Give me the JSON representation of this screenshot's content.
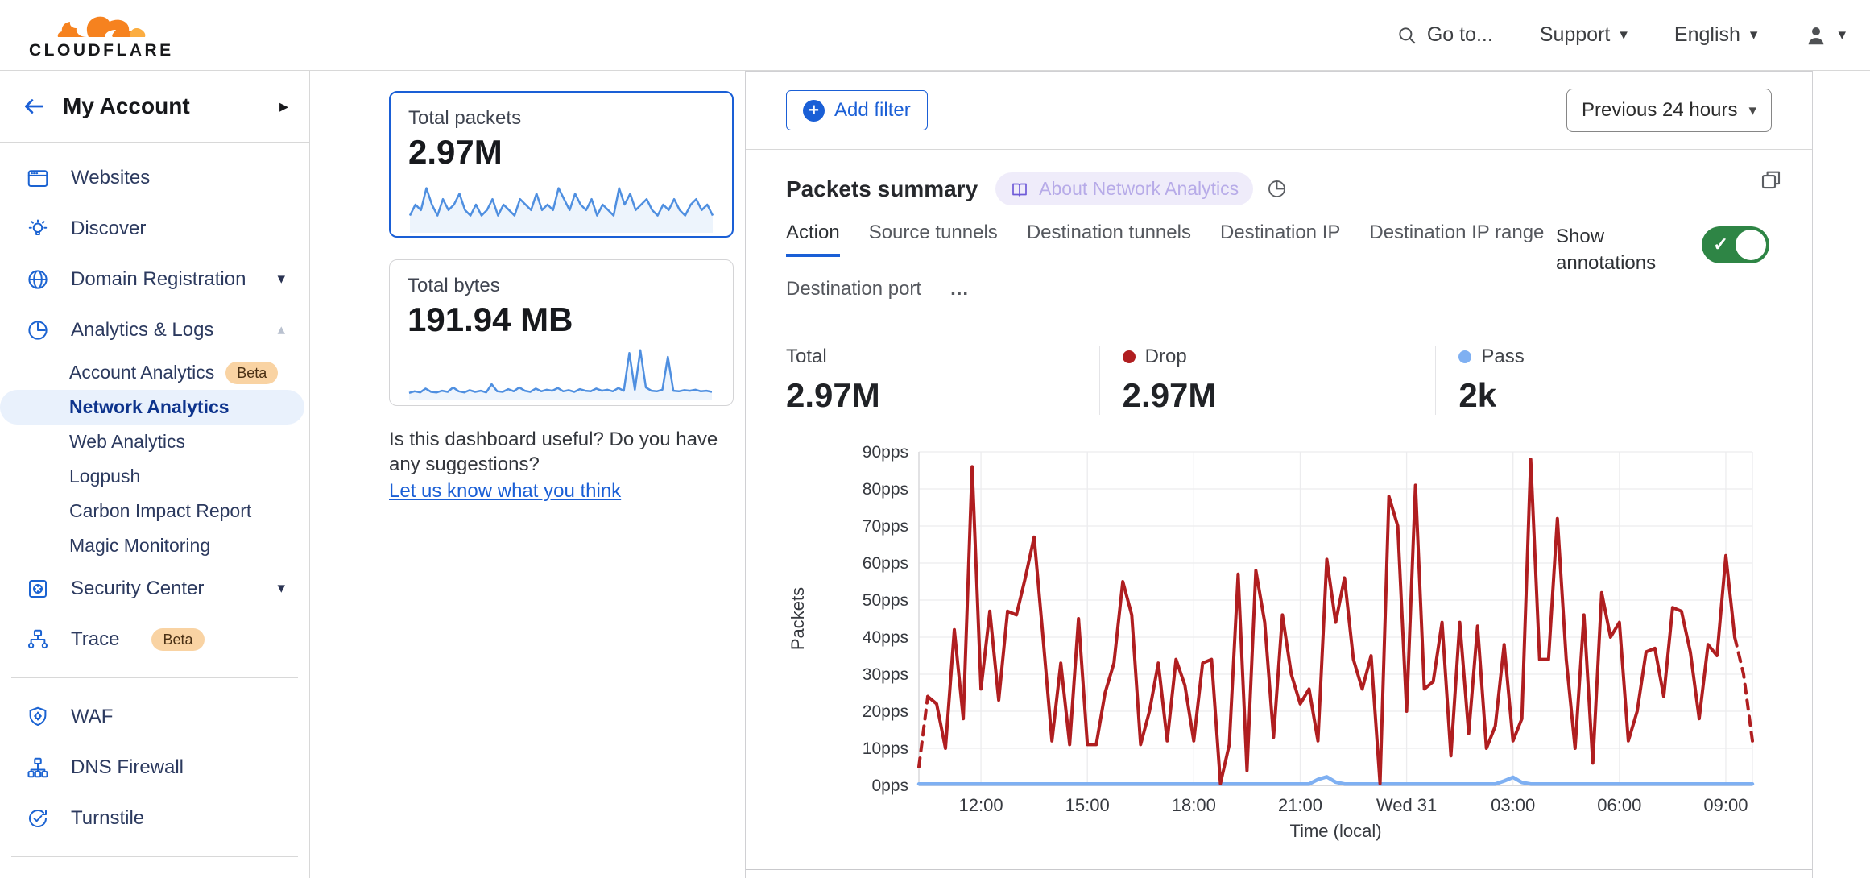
{
  "header": {
    "logo_word": "CLOUDFLARE",
    "goto": "Go to...",
    "support": "Support",
    "language": "English"
  },
  "sidebar": {
    "account_label": "My Account",
    "nav": [
      {
        "type": "item",
        "label": "Websites",
        "icon": "browser"
      },
      {
        "type": "item",
        "label": "Discover",
        "icon": "bulb"
      },
      {
        "type": "item",
        "label": "Domain Registration",
        "icon": "globe",
        "caret": "down"
      },
      {
        "type": "item",
        "label": "Analytics & Logs",
        "icon": "analytics",
        "caret": "up"
      },
      {
        "type": "sub",
        "label": "Account Analytics",
        "badge": "Beta"
      },
      {
        "type": "sub",
        "label": "Network Analytics",
        "selected": true
      },
      {
        "type": "sub",
        "label": "Web Analytics"
      },
      {
        "type": "sub",
        "label": "Logpush"
      },
      {
        "type": "sub",
        "label": "Carbon Impact Report"
      },
      {
        "type": "sub",
        "label": "Magic Monitoring"
      },
      {
        "type": "item",
        "label": "Security Center",
        "icon": "safe",
        "caret": "down"
      },
      {
        "type": "item",
        "label": "Trace",
        "icon": "trace",
        "badge": "Beta"
      },
      {
        "type": "divider"
      },
      {
        "type": "item",
        "label": "WAF",
        "icon": "shield"
      },
      {
        "type": "item",
        "label": "DNS Firewall",
        "icon": "hierarchy"
      },
      {
        "type": "item",
        "label": "Turnstile",
        "icon": "refresh-check"
      },
      {
        "type": "divider"
      },
      {
        "type": "item",
        "label": "",
        "icon": "starburst",
        "partial": true
      }
    ]
  },
  "overview": {
    "cards": [
      {
        "title": "Total packets",
        "value": "2.97M",
        "selected": true,
        "chart_index": 1
      },
      {
        "title": "Total bytes",
        "value": "191.94 MB",
        "selected": false,
        "chart_index": 2
      }
    ],
    "feedback": {
      "text": "Is this dashboard useful? Do you have any suggestions?",
      "link": "Let us know what you think"
    }
  },
  "main": {
    "add_filter": "Add filter",
    "time_range": "Previous 24 hours",
    "panel_title": "Packets summary",
    "about_badge": "About Network Analytics",
    "tabs": [
      "Action",
      "Source tunnels",
      "Destination tunnels",
      "Destination IP",
      "Destination IP range",
      "Destination port"
    ],
    "tabs_more": "...",
    "active_tab": "Action",
    "show_annotations": "Show annotations",
    "annotations_on": true,
    "totals": [
      {
        "label": "Total",
        "value": "2.97M",
        "dot": null
      },
      {
        "label": "Drop",
        "value": "2.97M",
        "dot": "#b01e20"
      },
      {
        "label": "Pass",
        "value": "2k",
        "dot": "#7fb0f2"
      }
    ],
    "colors": {
      "accent": "#1a5fd6",
      "drop": "#b01e20",
      "pass": "#7fb0f2",
      "toggle_green": "#2e8545"
    }
  },
  "chart_data": [
    {
      "type": "line",
      "title": "Packets summary",
      "xlabel": "Time (local)",
      "ylabel": "Packets",
      "ylim": [
        0,
        90
      ],
      "y_tick_step": 10,
      "y_unit": "pps",
      "x_ticks": [
        "12:00",
        "15:00",
        "18:00",
        "21:00",
        "Wed 31",
        "03:00",
        "06:00",
        "09:00"
      ],
      "x_tick_indices": [
        7,
        19,
        31,
        43,
        55,
        67,
        79,
        91
      ],
      "grid": true,
      "legend_position": "top",
      "series": [
        {
          "name": "Drop",
          "color": "#b01e20",
          "dashed_head_points": 2,
          "dashed_tail_points": 3,
          "values": [
            5,
            24,
            22,
            10,
            42,
            18,
            86,
            26,
            47,
            23,
            47,
            46,
            56,
            67,
            40,
            12,
            33,
            11,
            45,
            11,
            11,
            25,
            33,
            55,
            46,
            11,
            20,
            33,
            12,
            34,
            27,
            12,
            33,
            34,
            0.5,
            11,
            57,
            4,
            58,
            44,
            13,
            46,
            30,
            22,
            26,
            12,
            61,
            44,
            56,
            34,
            26,
            35,
            0.5,
            78,
            70,
            20,
            81,
            26,
            28,
            44,
            8,
            44,
            14,
            43,
            10,
            16,
            38,
            12,
            18,
            88,
            34,
            34,
            72,
            34,
            10,
            46,
            6,
            52,
            40,
            44,
            12,
            20,
            36,
            37,
            24,
            48,
            47,
            36,
            18,
            38,
            35,
            62,
            40,
            30,
            12
          ]
        },
        {
          "name": "Pass",
          "color": "#7fb0f2",
          "dashed_head_points": 0,
          "dashed_tail_points": 0,
          "values": [
            0.4,
            0.4,
            0.4,
            0.4,
            0.4,
            0.4,
            0.4,
            0.4,
            0.4,
            0.4,
            0.4,
            0.4,
            0.4,
            0.4,
            0.4,
            0.4,
            0.4,
            0.4,
            0.4,
            0.4,
            0.4,
            0.4,
            0.4,
            0.4,
            0.4,
            0.4,
            0.4,
            0.4,
            0.4,
            0.4,
            0.4,
            0.4,
            0.4,
            0.4,
            0.4,
            0.4,
            0.4,
            0.4,
            0.4,
            0.4,
            0.4,
            0.4,
            0.4,
            0.4,
            0.4,
            1.6,
            2.3,
            0.9,
            0.4,
            0.4,
            0.4,
            0.4,
            0.4,
            0.4,
            0.4,
            0.4,
            0.4,
            0.4,
            0.4,
            0.4,
            0.4,
            0.4,
            0.4,
            0.4,
            0.4,
            0.4,
            1.2,
            2.2,
            0.8,
            0.4,
            0.4,
            0.4,
            0.4,
            0.4,
            0.4,
            0.4,
            0.4,
            0.4,
            0.4,
            0.4,
            0.4,
            0.4,
            0.4,
            0.4,
            0.4,
            0.4,
            0.4,
            0.4,
            0.4,
            0.4,
            0.4,
            0.4,
            0.4,
            0.4,
            0.4
          ]
        }
      ]
    },
    {
      "type": "line",
      "title": "Total packets sparkline",
      "ylim": [
        0,
        10
      ],
      "color": "#4f8fe0",
      "values": [
        3,
        5,
        4,
        8,
        5,
        3,
        6,
        4,
        5,
        7,
        4,
        3,
        5,
        3,
        4,
        6,
        3,
        5,
        4,
        3,
        6,
        5,
        4,
        7,
        4,
        5,
        4,
        8,
        6,
        4,
        7,
        5,
        4,
        6,
        3,
        5,
        4,
        3,
        8,
        5,
        7,
        4,
        5,
        6,
        4,
        3,
        5,
        4,
        6,
        4,
        3,
        5,
        6,
        4,
        5,
        3
      ]
    },
    {
      "type": "line",
      "title": "Total bytes sparkline",
      "ylim": [
        0,
        10
      ],
      "color": "#4f8fe0",
      "values": [
        1.2,
        1.5,
        1.3,
        2.0,
        1.4,
        1.3,
        1.6,
        1.4,
        2.2,
        1.5,
        1.3,
        1.7,
        1.4,
        1.6,
        1.3,
        2.8,
        1.5,
        1.4,
        1.9,
        1.5,
        2.2,
        1.6,
        1.4,
        2.0,
        1.5,
        1.8,
        1.6,
        2.1,
        1.5,
        1.7,
        1.4,
        1.9,
        1.6,
        1.5,
        2.0,
        1.6,
        1.8,
        1.5,
        2.1,
        1.6,
        8.5,
        1.8,
        9.0,
        2.2,
        1.6,
        1.5,
        1.8,
        7.8,
        1.6,
        1.5,
        1.7,
        1.6,
        1.8,
        1.5,
        1.6,
        1.4
      ]
    }
  ]
}
